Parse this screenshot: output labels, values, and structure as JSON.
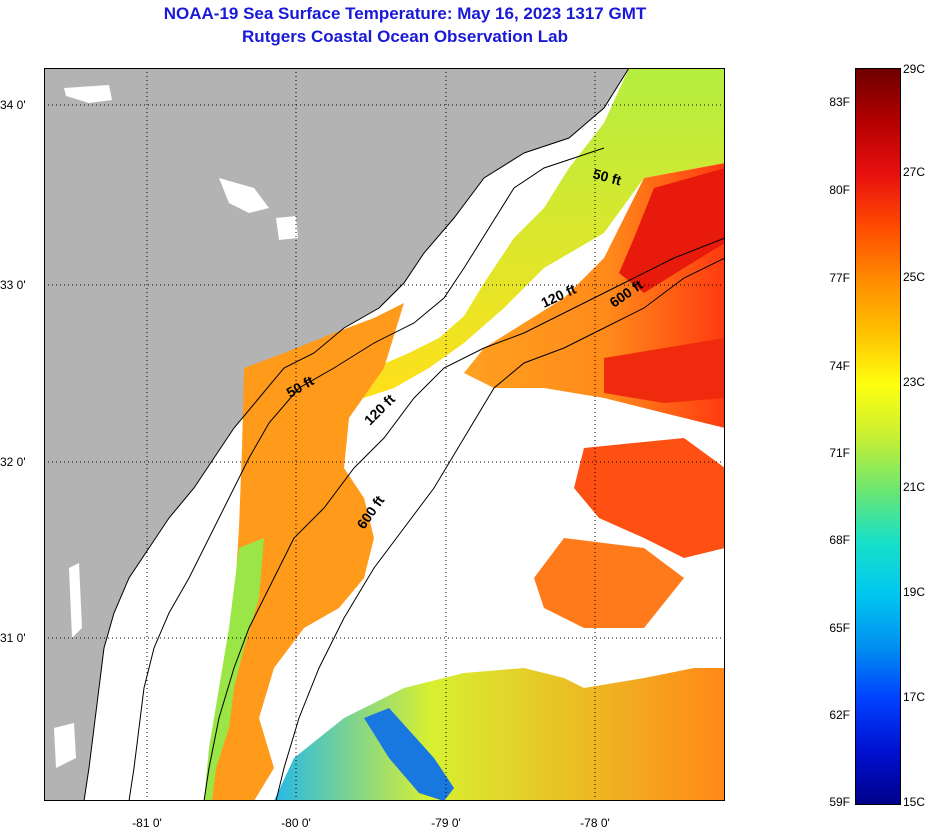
{
  "title_line1": "NOAA-19 Sea Surface Temperature:  May 16, 2023 1317 GMT",
  "title_line2": "Rutgers Coastal Ocean Observation Lab",
  "map": {
    "lat_labels": [
      "34 0'",
      "33 0'",
      "32 0'",
      "31 0'"
    ],
    "lon_labels": [
      "-81 0'",
      "-80 0'",
      "-79 0'",
      "-78 0'"
    ],
    "contour_labels": [
      {
        "text": "50 ft",
        "contour": "50 ft"
      },
      {
        "text": "120 ft",
        "contour": "120 ft"
      },
      {
        "text": "600 ft",
        "contour": "600 ft"
      },
      {
        "text": "50 ft",
        "contour": "50 ft"
      },
      {
        "text": "120 ft",
        "contour": "120 ft"
      },
      {
        "text": "600 ft",
        "contour": "600 ft"
      }
    ],
    "colors": {
      "land": "#b3b3b3",
      "cloud": "#ffffff",
      "coastline": "#000000"
    }
  },
  "colorbar": {
    "fahrenheit_labels": [
      "83F",
      "80F",
      "77F",
      "74F",
      "71F",
      "68F",
      "65F",
      "62F",
      "59F"
    ],
    "celsius_labels": [
      "29C",
      "27C",
      "25C",
      "23C",
      "21C",
      "19C",
      "17C",
      "15C"
    ],
    "gradient_colors": [
      "#6e0000",
      "#b40000",
      "#e81010",
      "#ff4a00",
      "#ff8a00",
      "#ffc000",
      "#ffff10",
      "#c8f032",
      "#6ee66e",
      "#18e0c8",
      "#00c8f0",
      "#0090f0",
      "#0040ff",
      "#0010d0",
      "#00008a"
    ]
  }
}
